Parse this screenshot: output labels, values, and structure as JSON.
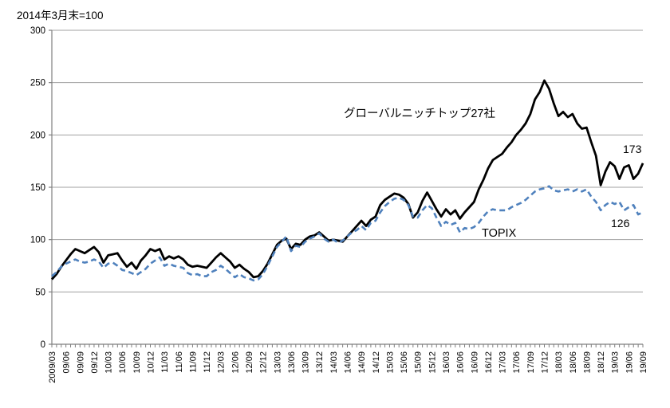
{
  "title": "2014年3月末=100",
  "chart_data": {
    "type": "line",
    "x_granularity": "monthly",
    "x_range": [
      "2009/03",
      "19/09"
    ],
    "x_labels": [
      "2009/03",
      "09/06",
      "09/09",
      "09/12",
      "10/03",
      "10/06",
      "10/09",
      "10/12",
      "11/03",
      "11/06",
      "11/09",
      "11/12",
      "12/03",
      "12/06",
      "12/09",
      "12/12",
      "13/03",
      "13/06",
      "13/09",
      "13/12",
      "14/03",
      "14/06",
      "14/09",
      "14/12",
      "15/03",
      "15/06",
      "15/09",
      "15/12",
      "16/03",
      "16/06",
      "16/09",
      "16/12",
      "17/03",
      "17/06",
      "17/09",
      "17/12",
      "18/03",
      "18/06",
      "18/09",
      "18/12",
      "19/03",
      "19/06",
      "19/09"
    ],
    "ylim": [
      0,
      300
    ],
    "y_ticks": [
      0,
      50,
      100,
      150,
      200,
      250,
      300
    ],
    "grid": true,
    "legend_position": "inline-annotations",
    "axis_color": "#7f7f7f",
    "grid_color": "#a0a0a0",
    "series": [
      {
        "name": "グローバルニッチトップ27社",
        "color": "#000000",
        "style": "solid",
        "width": 2.8,
        "end_value": "173",
        "values": [
          62,
          67,
          74,
          80,
          86,
          91,
          89,
          87,
          90,
          93,
          88,
          78,
          85,
          86,
          87,
          80,
          74,
          78,
          72,
          80,
          85,
          91,
          89,
          91,
          81,
          84,
          82,
          84,
          81,
          76,
          74,
          75,
          74,
          73,
          78,
          83,
          87,
          83,
          79,
          73,
          76,
          72,
          69,
          64,
          65,
          70,
          77,
          86,
          95,
          99,
          101,
          91,
          96,
          95,
          100,
          103,
          104,
          107,
          103,
          99,
          100,
          99,
          98,
          103,
          108,
          113,
          118,
          113,
          119,
          122,
          133,
          138,
          141,
          144,
          143,
          140,
          134,
          121,
          126,
          137,
          145,
          137,
          129,
          122,
          129,
          124,
          128,
          120,
          126,
          131,
          136,
          148,
          157,
          168,
          176,
          179,
          182,
          188,
          193,
          200,
          205,
          211,
          220,
          234,
          241,
          252,
          244,
          230,
          218,
          222,
          217,
          220,
          211,
          206,
          207,
          193,
          180,
          152,
          165,
          174,
          170,
          158,
          169,
          171,
          158,
          163,
          173
        ]
      },
      {
        "name": "TOPIX",
        "color": "#4F81BD",
        "style": "dashed",
        "width": 2.6,
        "end_value": "126",
        "values": [
          65,
          69,
          74,
          77,
          79,
          81,
          79,
          78,
          79,
          81,
          79,
          73,
          77,
          78,
          75,
          71,
          70,
          68,
          66,
          69,
          72,
          77,
          80,
          83,
          75,
          77,
          75,
          74,
          73,
          68,
          66,
          67,
          65,
          65,
          69,
          71,
          75,
          72,
          68,
          64,
          67,
          64,
          63,
          61,
          62,
          67,
          75,
          84,
          93,
          98,
          103,
          89,
          94,
          93,
          98,
          101,
          103,
          106,
          101,
          98,
          100,
          97,
          99,
          103,
          107,
          109,
          113,
          109,
          116,
          118,
          126,
          132,
          136,
          139,
          140,
          138,
          133,
          122,
          121,
          128,
          133,
          130,
          121,
          113,
          117,
          114,
          116,
          107,
          111,
          110,
          112,
          116,
          122,
          127,
          129,
          128,
          128,
          128,
          131,
          133,
          135,
          138,
          142,
          146,
          148,
          149,
          151,
          147,
          146,
          147,
          148,
          146,
          148,
          146,
          148,
          141,
          136,
          128,
          133,
          136,
          134,
          136,
          128,
          131,
          133,
          124,
          126
        ]
      }
    ]
  }
}
